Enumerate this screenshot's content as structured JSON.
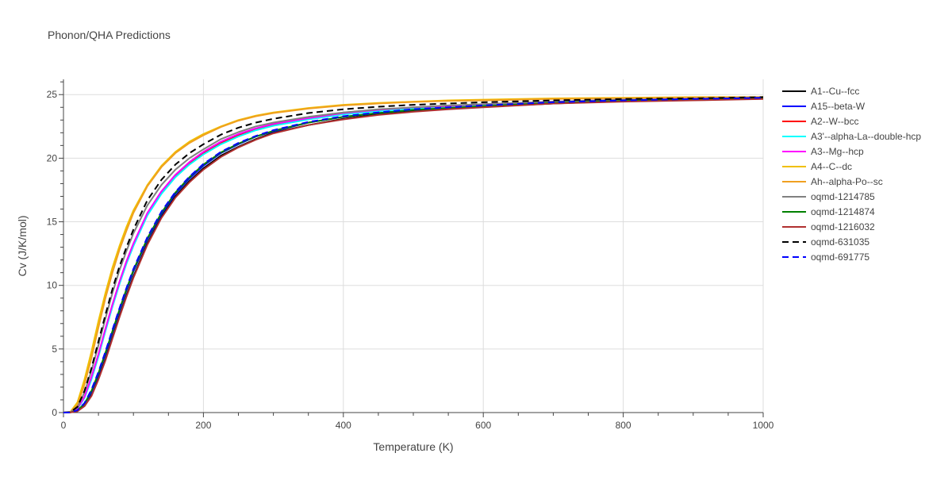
{
  "chart_data": {
    "type": "line",
    "title": "Phonon/QHA Predictions",
    "xlabel": "Temperature (K)",
    "ylabel": "Cv (J/K/mol)",
    "xlim": [
      0,
      1000
    ],
    "ylim": [
      0,
      26.2
    ],
    "xticks": [
      0,
      200,
      400,
      600,
      800,
      1000
    ],
    "yticks": [
      0,
      5,
      10,
      15,
      20,
      25
    ],
    "grid": true,
    "legend_position": "right",
    "x": [
      0,
      10,
      20,
      30,
      40,
      50,
      60,
      70,
      80,
      90,
      100,
      120,
      140,
      160,
      180,
      200,
      225,
      250,
      275,
      300,
      350,
      400,
      450,
      500,
      550,
      600,
      700,
      800,
      900,
      1000
    ],
    "series": [
      {
        "name": "A1--Cu--fcc",
        "color": "#000000",
        "dash": "solid",
        "values": [
          0,
          0.01,
          0.12,
          0.55,
          1.4,
          2.7,
          4.2,
          5.9,
          7.6,
          9.2,
          10.7,
          13.3,
          15.4,
          17.0,
          18.2,
          19.2,
          20.2,
          20.9,
          21.5,
          22.0,
          22.6,
          23.1,
          23.45,
          23.7,
          23.9,
          24.05,
          24.3,
          24.5,
          24.6,
          24.7
        ]
      },
      {
        "name": "A15--beta-W",
        "color": "#0000ff",
        "dash": "solid",
        "values": [
          0,
          0.01,
          0.15,
          0.65,
          1.6,
          3.0,
          4.6,
          6.3,
          8.0,
          9.6,
          11.1,
          13.6,
          15.6,
          17.2,
          18.4,
          19.4,
          20.4,
          21.1,
          21.7,
          22.1,
          22.8,
          23.25,
          23.55,
          23.8,
          23.95,
          24.1,
          24.35,
          24.5,
          24.6,
          24.7
        ]
      },
      {
        "name": "A2--W--bcc",
        "color": "#ff0000",
        "dash": "solid",
        "values": [
          0,
          0.02,
          0.3,
          1.2,
          2.7,
          4.5,
          6.5,
          8.4,
          10.2,
          11.8,
          13.2,
          15.6,
          17.3,
          18.6,
          19.6,
          20.4,
          21.2,
          21.8,
          22.3,
          22.6,
          23.1,
          23.5,
          23.75,
          23.95,
          24.1,
          24.2,
          24.4,
          24.55,
          24.65,
          24.7
        ]
      },
      {
        "name": "A3'--alpha-La--double-hcp",
        "color": "#00ffff",
        "dash": "solid",
        "values": [
          0,
          0.02,
          0.28,
          1.15,
          2.6,
          4.4,
          6.4,
          8.3,
          10.1,
          11.7,
          13.1,
          15.5,
          17.2,
          18.5,
          19.5,
          20.3,
          21.1,
          21.7,
          22.2,
          22.55,
          23.05,
          23.45,
          23.7,
          23.9,
          24.05,
          24.2,
          24.4,
          24.55,
          24.65,
          24.7
        ]
      },
      {
        "name": "A3--Mg--hcp",
        "color": "#ff00ff",
        "dash": "solid",
        "values": [
          0,
          0.02,
          0.33,
          1.25,
          2.8,
          4.6,
          6.6,
          8.5,
          10.3,
          11.9,
          13.3,
          15.7,
          17.4,
          18.7,
          19.7,
          20.5,
          21.3,
          21.9,
          22.35,
          22.7,
          23.15,
          23.55,
          23.8,
          24.0,
          24.1,
          24.25,
          24.45,
          24.6,
          24.65,
          24.75
        ]
      },
      {
        "name": "A4--C--dc",
        "color": "#f0c000",
        "dash": "solid",
        "values": [
          0,
          0.06,
          0.8,
          2.6,
          4.8,
          7.2,
          9.4,
          11.4,
          13.1,
          14.6,
          15.9,
          17.9,
          19.4,
          20.5,
          21.3,
          21.9,
          22.5,
          23.0,
          23.35,
          23.6,
          23.95,
          24.2,
          24.35,
          24.45,
          24.55,
          24.6,
          24.7,
          24.75,
          24.8,
          24.8
        ]
      },
      {
        "name": "Ah--alpha-Po--sc",
        "color": "#f0a020",
        "dash": "solid",
        "values": [
          0,
          0.04,
          0.6,
          2.2,
          4.3,
          6.7,
          9.0,
          11.0,
          12.8,
          14.3,
          15.7,
          17.8,
          19.3,
          20.4,
          21.2,
          21.8,
          22.45,
          22.95,
          23.3,
          23.55,
          23.9,
          24.15,
          24.3,
          24.42,
          24.5,
          24.55,
          24.65,
          24.72,
          24.78,
          24.8
        ]
      },
      {
        "name": "oqmd-1214785",
        "color": "#808080",
        "dash": "solid",
        "values": [
          0,
          0.03,
          0.4,
          1.6,
          3.3,
          5.3,
          7.4,
          9.4,
          11.2,
          12.7,
          14.1,
          16.3,
          17.9,
          19.1,
          20.0,
          20.7,
          21.5,
          22.05,
          22.5,
          22.8,
          23.25,
          23.6,
          23.85,
          24.0,
          24.15,
          24.25,
          24.45,
          24.6,
          24.65,
          24.75
        ]
      },
      {
        "name": "oqmd-1214874",
        "color": "#008000",
        "dash": "solid",
        "values": [
          0,
          0.01,
          0.16,
          0.7,
          1.7,
          3.1,
          4.7,
          6.4,
          8.1,
          9.7,
          11.2,
          13.7,
          15.7,
          17.3,
          18.5,
          19.5,
          20.45,
          21.15,
          21.7,
          22.15,
          22.8,
          23.25,
          23.55,
          23.8,
          23.95,
          24.1,
          24.35,
          24.5,
          24.6,
          24.7
        ]
      },
      {
        "name": "oqmd-1216032",
        "color": "#b03030",
        "dash": "solid",
        "values": [
          0,
          0.01,
          0.1,
          0.5,
          1.3,
          2.6,
          4.1,
          5.8,
          7.5,
          9.1,
          10.6,
          13.2,
          15.3,
          16.9,
          18.1,
          19.1,
          20.1,
          20.85,
          21.45,
          21.95,
          22.6,
          23.05,
          23.4,
          23.65,
          23.85,
          24.0,
          24.3,
          24.45,
          24.55,
          24.65
        ]
      },
      {
        "name": "oqmd-631035",
        "color": "#000000",
        "dash": "dash",
        "values": [
          0,
          0.03,
          0.45,
          1.7,
          3.5,
          5.6,
          7.7,
          9.7,
          11.5,
          13.0,
          14.4,
          16.7,
          18.3,
          19.5,
          20.4,
          21.1,
          21.85,
          22.4,
          22.8,
          23.1,
          23.55,
          23.85,
          24.05,
          24.2,
          24.3,
          24.4,
          24.55,
          24.65,
          24.7,
          24.8
        ]
      },
      {
        "name": "oqmd-691775",
        "color": "#0000ff",
        "dash": "dash",
        "values": [
          0,
          0.01,
          0.18,
          0.75,
          1.8,
          3.2,
          4.8,
          6.5,
          8.2,
          9.8,
          11.3,
          13.8,
          15.8,
          17.35,
          18.55,
          19.55,
          20.5,
          21.2,
          21.75,
          22.2,
          22.85,
          23.3,
          23.6,
          23.85,
          24.0,
          24.15,
          24.4,
          24.55,
          24.65,
          24.75
        ]
      }
    ]
  }
}
